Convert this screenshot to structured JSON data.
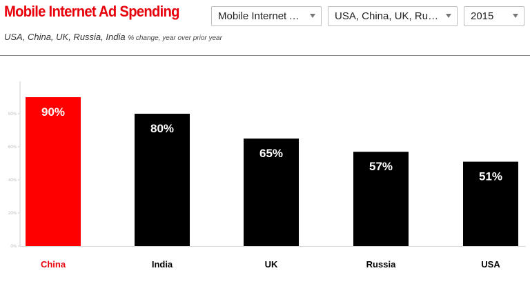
{
  "header": {
    "title": "Mobile Internet Ad Spending",
    "subtitle_countries": "USA, China, UK, Russia, India",
    "subtitle_note": "% change, year over prior year"
  },
  "filters": {
    "metric": "Mobile Internet A…",
    "countries": "USA, China, UK, Russi…",
    "year": "2015"
  },
  "colors": {
    "highlight": "#ff0000",
    "bar": "#000000",
    "label_highlight": "#e8000b"
  },
  "chart_data": {
    "type": "bar",
    "title": "Mobile Internet Ad Spending",
    "subtitle": "USA, China, UK, Russia, India % change, year over prior year",
    "categories": [
      "China",
      "India",
      "UK",
      "Russia",
      "USA"
    ],
    "values": [
      90,
      80,
      65,
      57,
      51
    ],
    "data_labels": [
      "90%",
      "80%",
      "65%",
      "57%",
      "51%"
    ],
    "highlight_category": "China",
    "xlabel": "",
    "ylabel": "",
    "ylim": [
      0,
      100
    ],
    "yticks": [
      0,
      20,
      40,
      60,
      80
    ],
    "ytick_labels": [
      "0%",
      "20%",
      "40%",
      "60%",
      "80%"
    ],
    "grid": false,
    "legend": "none"
  }
}
